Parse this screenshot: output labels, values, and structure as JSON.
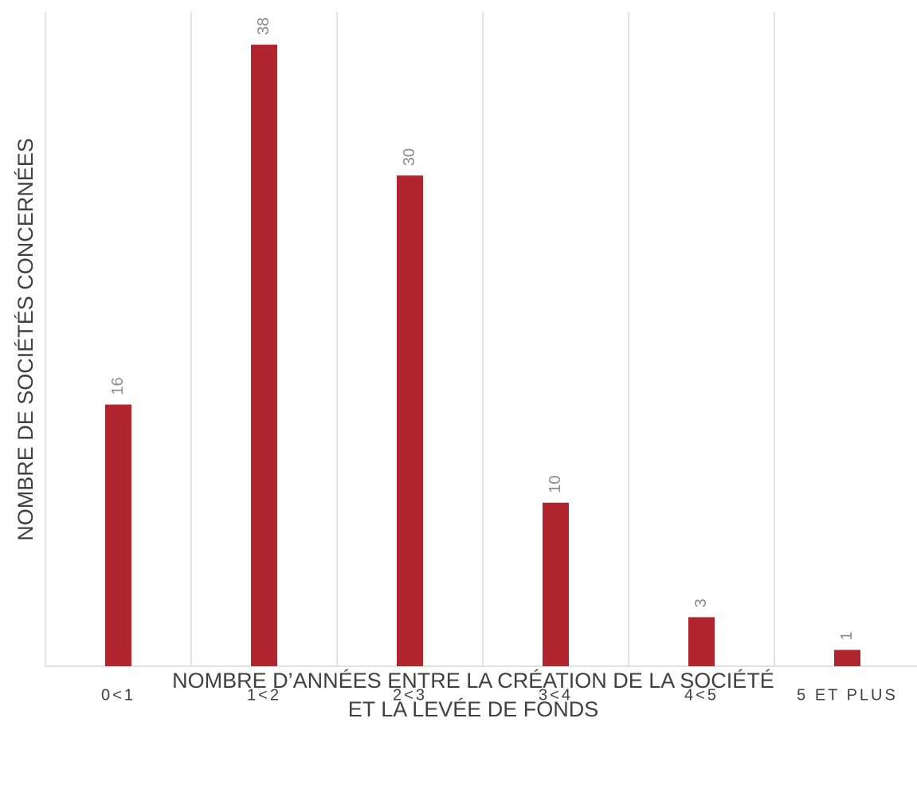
{
  "chart_data": {
    "type": "bar",
    "y_label": "NOMBRE DE SOCIÉTÉS CONCERNÉES",
    "x_label": [
      "NOMBRE D’ANNÉES ENTRE LA CRÉATION DE LA SOCIÉTÉ",
      "ET LA LEVÉE DE FONDS"
    ],
    "categories": [
      "0<1",
      "1<2",
      "2<3",
      "3<4",
      "4<5",
      "5 ET PLUS"
    ],
    "values": [
      16,
      38,
      30,
      10,
      3,
      1
    ],
    "color": "#b0252e",
    "ylim": [
      0,
      40
    ]
  }
}
